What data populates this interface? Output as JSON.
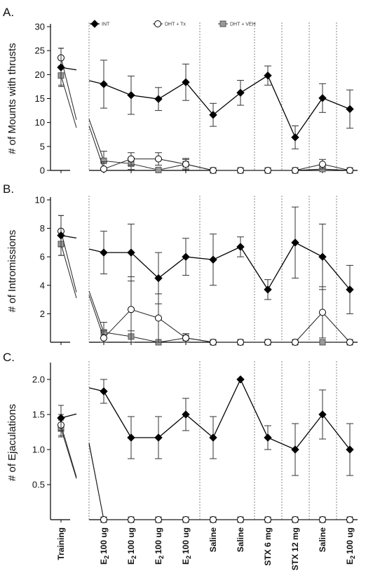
{
  "chart_data": [
    {
      "type": "line",
      "panel_label": "A.",
      "ylabel": "# of Mounts with thrusts",
      "ylim": [
        0,
        30
      ],
      "yticks": [
        0,
        5,
        10,
        15,
        20,
        25,
        30
      ],
      "legend": {
        "placement": "top",
        "entries": [
          "INT",
          "DHT + Tx",
          "DHT + VEH"
        ]
      },
      "training": [
        {
          "name": "INT",
          "value": 21.5,
          "err": 4.0
        },
        {
          "name": "DHT + Tx",
          "value": 23.5,
          "err": 2.0
        },
        {
          "name": "DHT + VEH",
          "value": 19.8,
          "err": 2.0
        }
      ],
      "series": [
        {
          "name": "INT",
          "values": [
            18.0,
            15.7,
            14.9,
            18.4,
            11.6,
            16.2,
            19.8,
            6.9,
            15.1,
            12.8
          ],
          "errors": [
            5.0,
            4.0,
            2.4,
            3.8,
            2.4,
            2.6,
            2.0,
            2.4,
            3.0,
            4.0
          ]
        },
        {
          "name": "DHT + Tx",
          "values": [
            0.3,
            2.4,
            2.4,
            1.3,
            0,
            0,
            0,
            0,
            1.3,
            0
          ],
          "errors": [
            1.5,
            1.3,
            1.3,
            1.2,
            0,
            0,
            0,
            0,
            1.0,
            0
          ]
        },
        {
          "name": "DHT + VEH",
          "values": [
            2.0,
            1.4,
            0.1,
            1.3,
            0,
            0,
            0,
            0,
            0.3,
            0
          ],
          "errors": [
            2.0,
            1.2,
            0.2,
            1.0,
            0,
            0,
            0,
            0,
            0.3,
            0
          ]
        }
      ]
    },
    {
      "type": "line",
      "panel_label": "B.",
      "ylabel": "# of Intromissions",
      "ylim": [
        0,
        10
      ],
      "yticks": [
        2,
        4,
        6,
        8,
        10
      ],
      "training": [
        {
          "name": "INT",
          "value": 7.5,
          "err": 1.4
        },
        {
          "name": "DHT + Tx",
          "value": 7.8,
          "err": 1.1
        },
        {
          "name": "DHT + VEH",
          "value": 6.9,
          "err": 0.8
        }
      ],
      "series": [
        {
          "name": "INT",
          "values": [
            6.3,
            6.3,
            4.5,
            6.0,
            5.8,
            6.7,
            3.7,
            7.0,
            6.0,
            3.7
          ],
          "errors": [
            1.5,
            2.0,
            1.8,
            1.3,
            1.8,
            0.7,
            0.7,
            2.5,
            2.3,
            1.7
          ]
        },
        {
          "name": "DHT + Tx",
          "values": [
            0.3,
            2.3,
            1.7,
            0.3,
            0,
            0,
            0,
            0,
            2.1,
            0
          ],
          "errors": [
            0.5,
            2.3,
            1.7,
            0.3,
            0,
            0,
            0,
            0,
            1.8,
            0
          ]
        },
        {
          "name": "DHT + VEH",
          "values": [
            0.7,
            0.4,
            0,
            0.3,
            0,
            0,
            0,
            0,
            0,
            0
          ],
          "errors": [
            0.7,
            0.4,
            0,
            0.3,
            0,
            0,
            0,
            0,
            0,
            0
          ]
        }
      ]
    },
    {
      "type": "line",
      "panel_label": "C.",
      "ylabel": "# of Ejaculations",
      "ylim": [
        0,
        2.2
      ],
      "yticks": [
        0.5,
        1.0,
        1.5,
        2.0
      ],
      "ytick_labels": [
        "0.5",
        "1.0",
        "1.5",
        "2.0"
      ],
      "training": [
        {
          "name": "INT",
          "value": 1.45,
          "err": 0.18
        },
        {
          "name": "DHT + Tx",
          "value": 1.35,
          "err": 0.15
        },
        {
          "name": "DHT + VEH",
          "value": 1.3,
          "err": 0.12
        }
      ],
      "series": [
        {
          "name": "INT",
          "values": [
            1.83,
            1.17,
            1.17,
            1.5,
            1.17,
            2.0,
            1.17,
            1.0,
            1.5,
            1.0
          ],
          "errors": [
            0.17,
            0.3,
            0.3,
            0.23,
            0.3,
            0,
            0.17,
            0.37,
            0.35,
            0.37
          ]
        },
        {
          "name": "DHT + Tx",
          "values": [
            0,
            0,
            0,
            0,
            0,
            0,
            0,
            0,
            0,
            0
          ],
          "errors": [
            0,
            0,
            0,
            0,
            0,
            0,
            0,
            0,
            0,
            0
          ]
        },
        {
          "name": "DHT + VEH",
          "values": [
            0,
            0,
            0,
            0,
            0,
            0,
            0,
            0,
            0,
            0
          ],
          "errors": [
            0,
            0,
            0,
            0,
            0,
            0,
            0,
            0,
            0,
            0
          ]
        }
      ]
    }
  ],
  "x_axis": {
    "training_label": "Training",
    "conditions": [
      {
        "prefix": "E",
        "sub": "2",
        "rest": "100 ug"
      },
      {
        "prefix": "E",
        "sub": "2",
        "rest": "100 ug"
      },
      {
        "prefix": "E",
        "sub": "2",
        "rest": "100 ug"
      },
      {
        "prefix": "E",
        "sub": "2",
        "rest": "100 ug"
      },
      {
        "prefix": "Saline",
        "sub": "",
        "rest": ""
      },
      {
        "prefix": "Saline",
        "sub": "",
        "rest": ""
      },
      {
        "prefix": "STX 6 mg",
        "sub": "",
        "rest": ""
      },
      {
        "prefix": "STX 12 mg",
        "sub": "",
        "rest": ""
      },
      {
        "prefix": "Saline",
        "sub": "",
        "rest": ""
      },
      {
        "prefix": "E",
        "sub": "2",
        "rest": "100 ug"
      }
    ]
  }
}
